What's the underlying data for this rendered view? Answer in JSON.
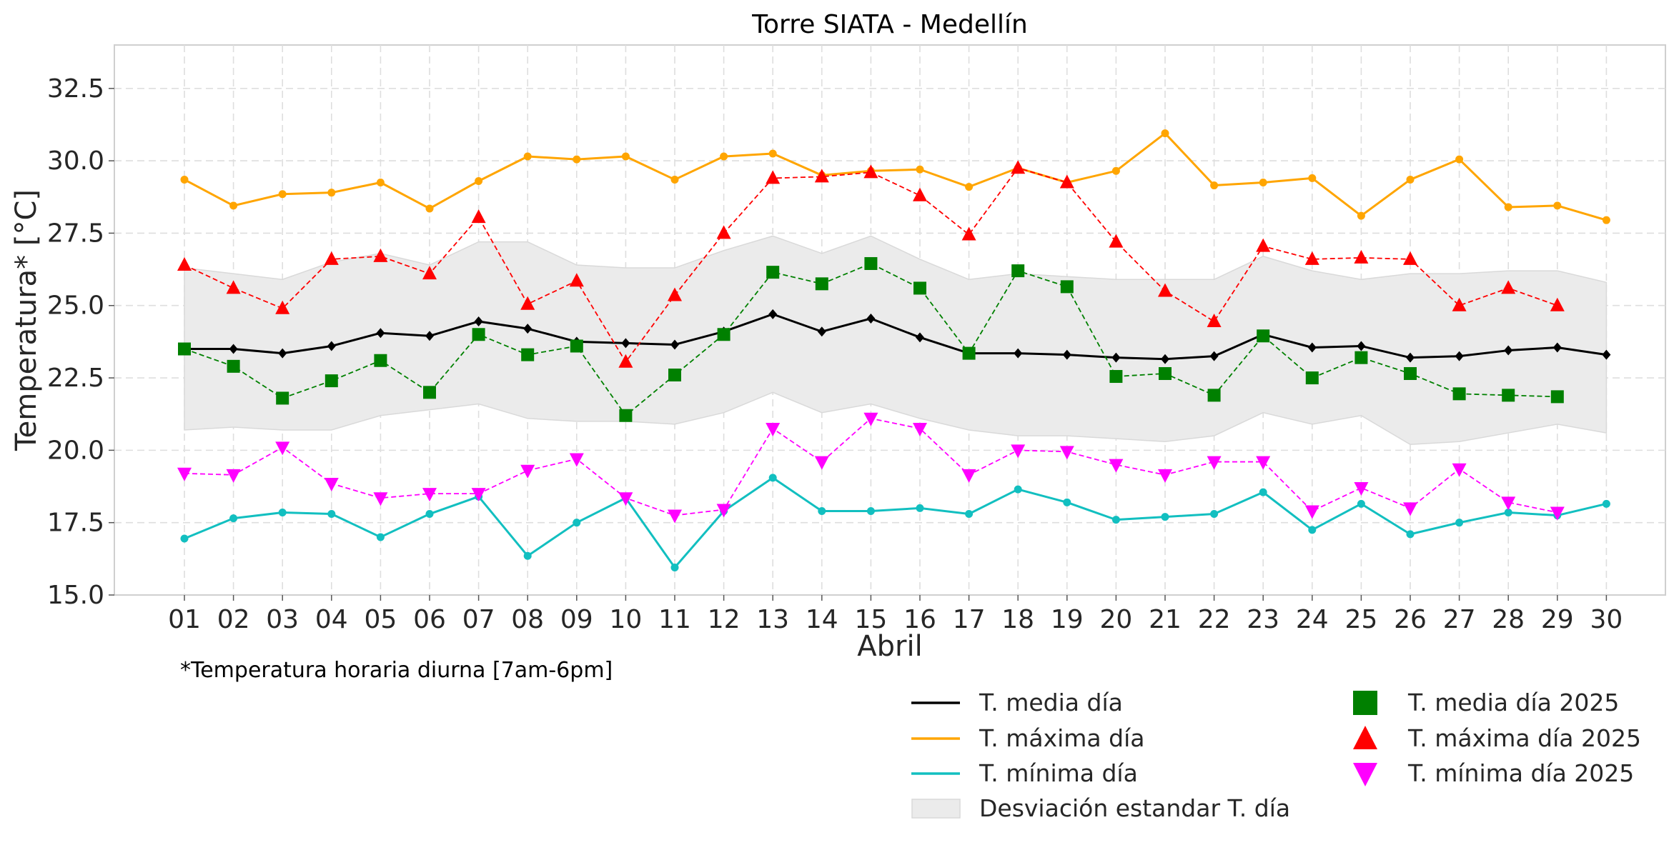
{
  "chart_data": {
    "type": "line",
    "title": "Torre SIATA - Medellín",
    "xlabel": "Abril",
    "ylabel": "Temperatura* [°C]",
    "note": "*Temperatura horaria diurna [7am-6pm]",
    "categories": [
      "01",
      "02",
      "03",
      "04",
      "05",
      "06",
      "07",
      "08",
      "09",
      "10",
      "11",
      "12",
      "13",
      "14",
      "15",
      "16",
      "17",
      "18",
      "19",
      "20",
      "21",
      "22",
      "23",
      "24",
      "25",
      "26",
      "27",
      "28",
      "29",
      "30"
    ],
    "ylim": [
      15.0,
      34.0
    ],
    "yticks": [
      "15.0",
      "17.5",
      "20.0",
      "22.5",
      "25.0",
      "27.5",
      "30.0",
      "32.5"
    ],
    "grid": true,
    "legend_position": "bottom-right",
    "band": {
      "name": "Desviación estandar T. día",
      "color": "#ebebeb",
      "upper": [
        26.3,
        26.1,
        25.9,
        26.5,
        26.8,
        26.4,
        27.2,
        27.2,
        26.4,
        26.3,
        26.3,
        26.9,
        27.4,
        26.8,
        27.4,
        26.6,
        25.9,
        26.1,
        26.0,
        25.9,
        25.9,
        25.9,
        26.7,
        26.2,
        25.9,
        26.1,
        26.1,
        26.2,
        26.2,
        25.8
      ],
      "lower": [
        20.7,
        20.8,
        20.7,
        20.7,
        21.2,
        21.4,
        21.6,
        21.1,
        21.0,
        21.0,
        20.9,
        21.3,
        22.0,
        21.3,
        21.6,
        21.1,
        20.7,
        20.5,
        20.5,
        20.4,
        20.3,
        20.5,
        21.3,
        20.9,
        21.2,
        20.2,
        20.3,
        20.6,
        20.9,
        20.6
      ]
    },
    "series": [
      {
        "name": "T. media día",
        "color": "#000000",
        "style": "solid",
        "marker": "diamond",
        "values": [
          23.5,
          23.5,
          23.35,
          23.6,
          24.05,
          23.95,
          24.45,
          24.2,
          23.75,
          23.7,
          23.65,
          24.1,
          24.7,
          24.1,
          24.55,
          23.9,
          23.35,
          23.35,
          23.3,
          23.2,
          23.15,
          23.25,
          24.0,
          23.55,
          23.6,
          23.2,
          23.25,
          23.45,
          23.55,
          23.3
        ]
      },
      {
        "name": "T. máxima día",
        "color": "#ffa500",
        "style": "solid",
        "marker": "dot",
        "values": [
          29.35,
          28.45,
          28.85,
          28.9,
          29.25,
          28.35,
          29.3,
          30.15,
          30.05,
          30.15,
          29.35,
          30.15,
          30.25,
          29.5,
          29.65,
          29.7,
          29.1,
          29.75,
          29.25,
          29.65,
          30.95,
          29.15,
          29.25,
          29.4,
          28.1,
          29.35,
          30.05,
          28.4,
          28.45,
          27.95
        ]
      },
      {
        "name": "T. mínima día",
        "color": "#12bfc0",
        "style": "solid",
        "marker": "dot",
        "values": [
          16.95,
          17.65,
          17.85,
          17.8,
          17.0,
          17.8,
          18.4,
          16.35,
          17.5,
          18.35,
          15.95,
          17.9,
          19.05,
          17.9,
          17.9,
          18.0,
          17.8,
          18.65,
          18.2,
          17.6,
          17.7,
          17.8,
          18.55,
          17.25,
          18.15,
          17.1,
          17.5,
          17.85,
          17.75,
          18.15
        ]
      },
      {
        "name": "T. media día 2025",
        "color": "#008000",
        "style": "dashed",
        "marker": "square",
        "values": [
          23.5,
          22.9,
          21.8,
          22.4,
          23.1,
          22.0,
          24.0,
          23.3,
          23.6,
          21.2,
          22.6,
          24.0,
          26.15,
          25.75,
          26.45,
          25.6,
          23.35,
          26.2,
          25.65,
          22.55,
          22.65,
          21.9,
          23.95,
          22.5,
          23.2,
          22.65,
          21.95,
          21.9,
          21.85,
          null
        ]
      },
      {
        "name": "T. máxima día 2025",
        "color": "#ff0000",
        "style": "dashed",
        "marker": "triangle-up",
        "values": [
          26.4,
          25.6,
          24.9,
          26.6,
          26.7,
          26.1,
          28.05,
          25.05,
          25.85,
          23.05,
          25.35,
          27.5,
          29.4,
          29.45,
          29.6,
          28.8,
          27.45,
          29.75,
          29.25,
          27.2,
          25.5,
          24.45,
          27.05,
          26.6,
          26.65,
          26.6,
          25.0,
          25.6,
          25.0,
          null
        ]
      },
      {
        "name": "T. mínima día 2025",
        "color": "#ff00ff",
        "style": "dashed",
        "marker": "triangle-down",
        "values": [
          19.2,
          19.15,
          20.1,
          18.85,
          18.35,
          18.5,
          18.5,
          19.3,
          19.7,
          18.35,
          17.75,
          17.95,
          20.75,
          19.6,
          21.1,
          20.75,
          19.15,
          20.0,
          19.95,
          19.5,
          19.15,
          19.6,
          19.6,
          17.9,
          18.7,
          18.0,
          19.35,
          18.2,
          17.85,
          null
        ]
      }
    ]
  }
}
